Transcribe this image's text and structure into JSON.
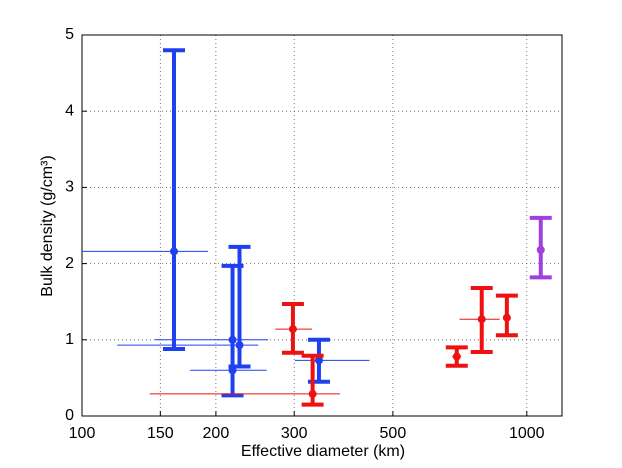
{
  "chart_data": {
    "type": "errorbar",
    "x_label": "Effective diameter (km)",
    "y_label": "Bulk density (g/cm³)",
    "xscale": "log",
    "xlim": [
      100,
      1200
    ],
    "ylim": [
      0,
      5
    ],
    "xticks": [
      100,
      150,
      200,
      300,
      500,
      1000
    ],
    "yticks": [
      0,
      1,
      2,
      3,
      4,
      5
    ],
    "grid": true,
    "series": [
      {
        "color": "#2040f0",
        "points": [
          {
            "x": 161,
            "y": 2.16,
            "ylow": 0.88,
            "yhigh": 4.8,
            "xlow": 100,
            "xhigh": 192
          },
          {
            "x": 218,
            "y": 1.0,
            "ylow": null,
            "yhigh": null,
            "xlow": 146,
            "xhigh": 262
          },
          {
            "x": 226,
            "y": 0.93,
            "ylow": 0.65,
            "yhigh": 2.22,
            "xlow": 120,
            "xhigh": 249
          },
          {
            "x": 218,
            "y": 0.6,
            "ylow": 0.27,
            "yhigh": 1.97,
            "xlow": 175,
            "xhigh": 260
          },
          {
            "x": 341,
            "y": 0.73,
            "ylow": 0.45,
            "yhigh": 1.0,
            "xlow": 301,
            "xhigh": 443
          }
        ]
      },
      {
        "color": "#ee1111",
        "points": [
          {
            "x": 298,
            "y": 1.14,
            "ylow": 0.83,
            "yhigh": 1.47,
            "xlow": 272,
            "xhigh": 329
          },
          {
            "x": 330,
            "y": 0.29,
            "ylow": 0.15,
            "yhigh": 0.79,
            "xlow": 142,
            "xhigh": 380
          },
          {
            "x": 696,
            "y": 0.78,
            "ylow": 0.66,
            "yhigh": 0.9,
            "xlow": 680,
            "xhigh": 712
          },
          {
            "x": 792,
            "y": 1.27,
            "ylow": 0.84,
            "yhigh": 1.68,
            "xlow": 706,
            "xhigh": 869
          },
          {
            "x": 902,
            "y": 1.29,
            "ylow": 1.06,
            "yhigh": 1.58,
            "xlow": 885,
            "xhigh": 920
          }
        ]
      },
      {
        "color": "#a040e0",
        "points": [
          {
            "x": 1075,
            "y": 2.18,
            "ylow": 1.82,
            "yhigh": 2.6,
            "xlow": 1060,
            "xhigh": 1090
          }
        ]
      }
    ]
  }
}
